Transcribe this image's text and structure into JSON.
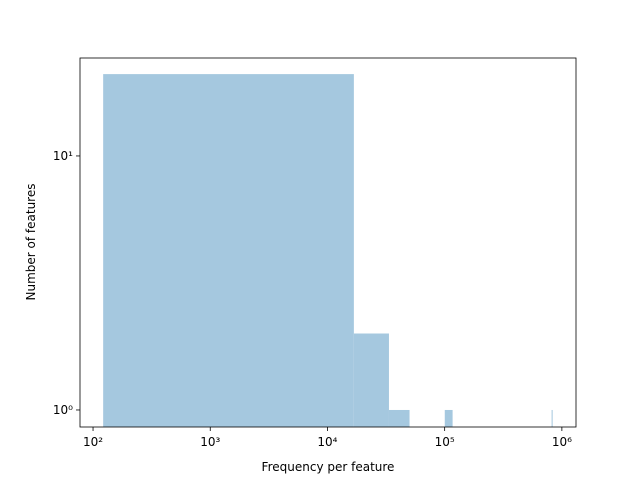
{
  "chart_data": {
    "type": "histogram",
    "xlabel": "Frequency per feature",
    "ylabel": "Number of features",
    "bins": [
      122,
      16802,
      33482,
      50162,
      66842,
      83522,
      100202,
      116882,
      133562,
      150242,
      166922,
      183602,
      200282,
      216962,
      233642,
      250322,
      267002,
      283682,
      300362,
      317042,
      333722,
      350402,
      367082,
      383762,
      400442,
      417122,
      433802,
      450482,
      467162,
      483842,
      500522,
      517202,
      533882,
      550562,
      567242,
      583922,
      600602,
      617282,
      633962,
      650642,
      667322,
      684002,
      700682,
      717362,
      734042,
      750722,
      767402,
      784082,
      800762,
      817442,
      834122
    ],
    "values": [
      21,
      2,
      1,
      0,
      0,
      0,
      1,
      0,
      0,
      0,
      0,
      0,
      0,
      0,
      0,
      0,
      0,
      0,
      0,
      0,
      0,
      0,
      0,
      0,
      0,
      0,
      0,
      0,
      0,
      0,
      0,
      0,
      0,
      0,
      0,
      0,
      0,
      0,
      0,
      0,
      0,
      0,
      0,
      0,
      0,
      0,
      0,
      0,
      0,
      1
    ],
    "color": "#a5c8df",
    "xscale": "log",
    "yscale": "log",
    "xlim": [
      77.4,
      1320000
    ],
    "ylim": [
      0.857,
      24.3
    ],
    "xticks": [
      {
        "value": 100,
        "label": "10²"
      },
      {
        "value": 1000,
        "label": "10³"
      },
      {
        "value": 10000,
        "label": "10⁴"
      },
      {
        "value": 100000,
        "label": "10⁵"
      },
      {
        "value": 1000000,
        "label": "10⁶"
      }
    ],
    "yticks": [
      {
        "value": 1,
        "label": "10⁰"
      },
      {
        "value": 10,
        "label": "10¹"
      }
    ]
  }
}
